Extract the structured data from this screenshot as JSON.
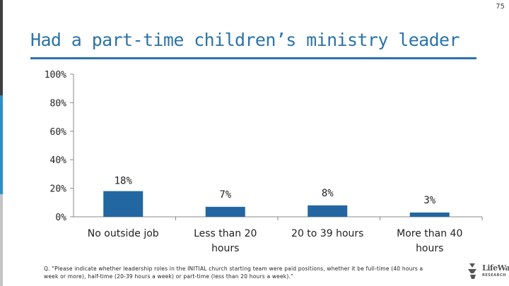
{
  "page_number": "75",
  "title": "Had a part-time children’s ministry leader",
  "chart_data": {
    "type": "bar",
    "title": "Had a part-time children’s ministry leader",
    "categories": [
      "No outside job",
      "Less than 20 hours",
      "20 to 39 hours",
      "More than 40 hours"
    ],
    "values": [
      18,
      7,
      8,
      3
    ],
    "value_labels": [
      "18%",
      "7%",
      "8%",
      "3%"
    ],
    "ylim": [
      0,
      100
    ],
    "yticks": [
      0,
      20,
      40,
      60,
      80,
      100
    ],
    "ytick_labels": [
      "0%",
      "20%",
      "40%",
      "60%",
      "80%",
      "100%"
    ],
    "xlabel": "",
    "ylabel": "",
    "grid": false,
    "bar_color": "#2267a1"
  },
  "footnote": "Q. “Please indicate whether leadership roles in the INITIAL church starting team were paid positions, whether it be full-time (40 hours a week or more), half-time (20-39 hours a week) or part-time (less than 20 hours a week).”",
  "logo": {
    "name": "LifeWay",
    "sub": "RESEARCH"
  },
  "colors": {
    "accent": "#2b73a9",
    "bar": "#2267a1"
  }
}
